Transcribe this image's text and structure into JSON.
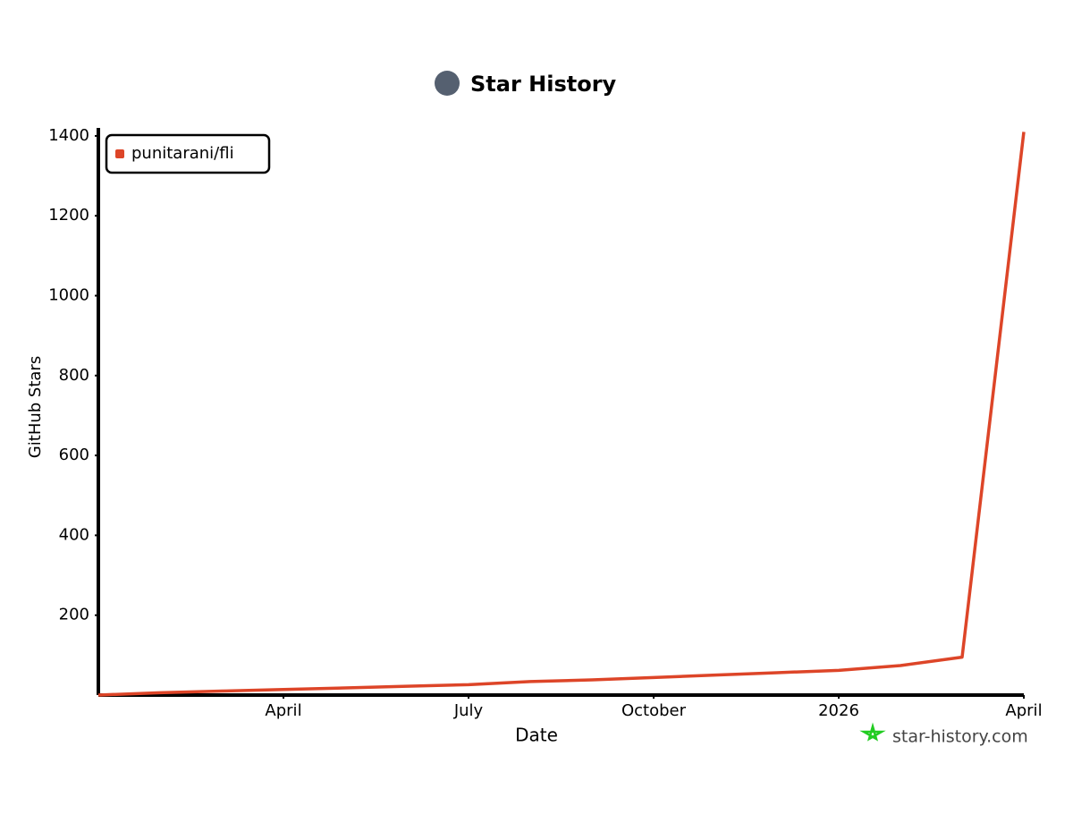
{
  "chart_data": {
    "type": "line",
    "title": "Star History",
    "x_label": "Date",
    "y_label": "GitHub Stars",
    "watermark": "star-history.com",
    "x": [
      "2025-01",
      "2025-02",
      "2025-03",
      "2025-04",
      "2025-05",
      "2025-06",
      "2025-07",
      "2025-08",
      "2025-09",
      "2025-10",
      "2025-11",
      "2025-12",
      "2026-01",
      "2026-02",
      "2026-03",
      "2026-04"
    ],
    "series": [
      {
        "name": "punitarani/fli",
        "color": "#dd4528",
        "values": [
          0,
          6,
          10,
          14,
          18,
          22,
          26,
          34,
          38,
          44,
          50,
          56,
          62,
          74,
          95,
          1410
        ]
      }
    ],
    "xlim": [
      "2025-01",
      "2026-04"
    ],
    "xticks": [
      {
        "value": "2025-04",
        "label": "April"
      },
      {
        "value": "2025-07",
        "label": "July"
      },
      {
        "value": "2025-10",
        "label": "October"
      },
      {
        "value": "2026-01",
        "label": "2026"
      },
      {
        "value": "2026-04",
        "label": "April"
      }
    ],
    "ylim": [
      0,
      1420
    ],
    "yticks": [
      200,
      400,
      600,
      800,
      1000,
      1200,
      1400
    ],
    "legend": "top-left"
  }
}
